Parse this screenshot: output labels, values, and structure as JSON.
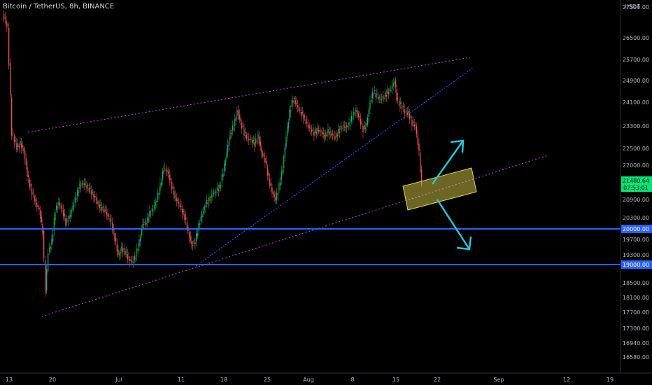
{
  "header": {
    "title": "Bitcoin / TetherUS, 8h, BINANCE"
  },
  "price_scale": {
    "currency": "USDT"
  },
  "chart_data": {
    "type": "candlestick",
    "title": "Bitcoin / TetherUS, 8h, BINANCE",
    "ylim": [
      16300,
      27700
    ],
    "y_ticks": [
      "27500.00",
      "26500.00",
      "25700.00",
      "24900.00",
      "24100.00",
      "23300.00",
      "22500.00",
      "22000.00",
      "20900.00",
      "20300.00",
      "19700.00",
      "19300.00",
      "18500.00",
      "18100.00",
      "17700.00",
      "17300.00",
      "16940.00",
      "16580.00"
    ],
    "x_ticks": [
      "13",
      "20",
      "Jul",
      "11",
      "18",
      "25",
      "Aug",
      "8",
      "15",
      "22",
      "Sep",
      "12",
      "19"
    ],
    "key_levels": [
      {
        "value": 20000,
        "label": "20000.00",
        "color": "#2962ff"
      },
      {
        "value": 19000,
        "label": "19000.00",
        "color": "#2962ff"
      }
    ],
    "last_price": {
      "value": 21480.64,
      "label": "21480.64",
      "countdown": "07:53:01",
      "color": "#00e676"
    },
    "colors": {
      "up": "#26a69a",
      "up_bright": "#08b21a",
      "down": "#ef5350",
      "trendline": "#e040fb",
      "support_line": "#4055ff",
      "zone_fill": "#f0e050",
      "arrow": "#26c6da"
    },
    "series": []
  }
}
